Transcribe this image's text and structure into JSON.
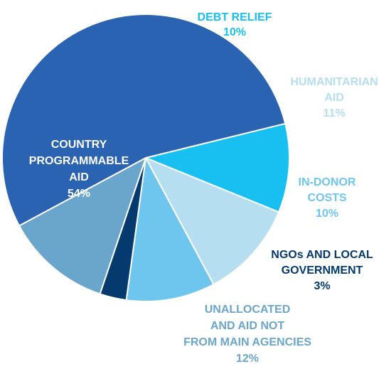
{
  "chart_data": {
    "type": "pie",
    "title": "",
    "slices": [
      {
        "label": [
          "DEBT RELIEF"
        ],
        "value": 10,
        "value_label": "10%",
        "color": "#17c0f0",
        "label_color": "#17c0f0"
      },
      {
        "label": [
          "HUMANITARIAN",
          "AID"
        ],
        "value": 11,
        "value_label": "11%",
        "color": "#b5def0",
        "label_color": "#b5def0"
      },
      {
        "label": [
          "IN-DONOR",
          "COSTS"
        ],
        "value": 10,
        "value_label": "10%",
        "color": "#6ec6ee",
        "label_color": "#6ec6ee"
      },
      {
        "label": [
          "NGOs AND LOCAL",
          "GOVERNMENT"
        ],
        "value": 3,
        "value_label": "3%",
        "color": "#053a6e",
        "label_color": "#053a6e"
      },
      {
        "label": [
          "UNALLOCATED",
          "AND AID NOT",
          "FROM MAIN AGENCIES"
        ],
        "value": 12,
        "value_label": "12%",
        "color": "#6aa6cc",
        "label_color": "#6aa6cc"
      },
      {
        "label": [
          "COUNTRY",
          "PROGRAMMABLE",
          "AID"
        ],
        "value": 54,
        "value_label": "54%",
        "color": "#2a63b2",
        "label_color": "#ffffff"
      }
    ]
  }
}
